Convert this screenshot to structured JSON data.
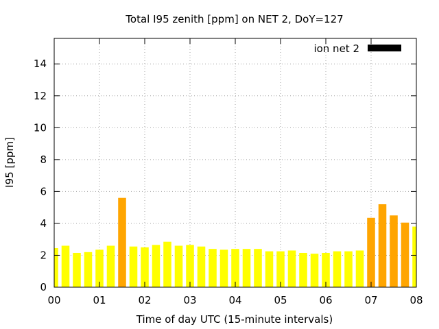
{
  "chart_data": {
    "type": "bar",
    "title": "Total I95 zenith [ppm] on NET 2, DoY=127",
    "xlabel": "Time of day UTC (15-minute intervals)",
    "ylabel": "I95 [ppm]",
    "xlim": [
      0,
      8
    ],
    "ylim": [
      0,
      15.6
    ],
    "x_ticks": [
      "00",
      "01",
      "02",
      "03",
      "04",
      "05",
      "06",
      "07",
      "08"
    ],
    "y_ticks": [
      0,
      2,
      4,
      6,
      8,
      10,
      12,
      14
    ],
    "grid": true,
    "legend": {
      "label": "ion net 2",
      "color": "#000000",
      "position": "top-right"
    },
    "colors": {
      "normal": "#ffff00",
      "elevated": "#ffa500"
    },
    "elevated_threshold": 4,
    "bar_interval_hours": 0.25,
    "values": [
      2.45,
      2.6,
      2.15,
      2.2,
      2.35,
      2.6,
      5.6,
      2.55,
      2.5,
      2.65,
      2.85,
      2.6,
      2.65,
      2.55,
      2.4,
      2.35,
      2.4,
      2.4,
      2.4,
      2.25,
      2.25,
      2.3,
      2.15,
      2.1,
      2.15,
      2.25,
      2.25,
      2.3,
      4.35,
      5.2,
      4.5,
      4.05,
      3.8
    ]
  }
}
